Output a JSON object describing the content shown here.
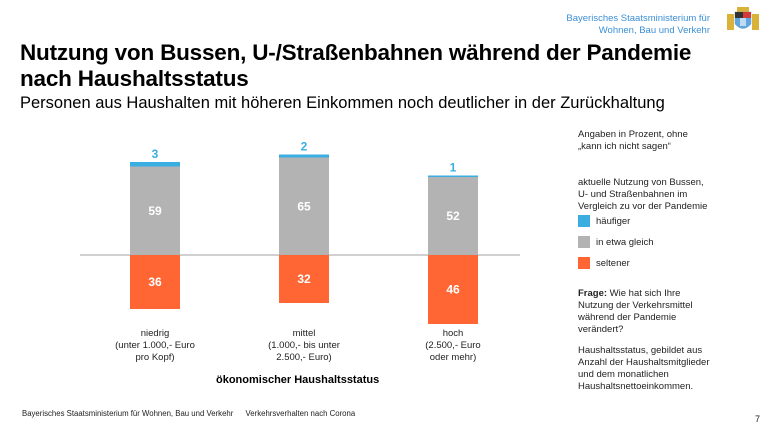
{
  "header": {
    "ministry_line1": "Bayerisches Staatsministerium für",
    "ministry_line2": "Wohnen, Bau und Verkehr",
    "logo": "bavarian-coat-of-arms-icon"
  },
  "title_line1": "Nutzung von Bussen, U-/Straßenbahnen während der Pandemie",
  "title_line2": "nach Haushaltsstatus",
  "subtitle": "Personen aus Haushalten mit höheren Einkommen noch deutlicher in der Zurückhaltung",
  "chart_data": {
    "type": "bar",
    "stacked": true,
    "baseline_between": [
      "in etwa gleich",
      "seltener"
    ],
    "categories": [
      "niedrig (unter 1.000,- Euro pro Kopf)",
      "mittel (1.000,- bis unter 2.500,- Euro)",
      "hoch (2.500,- Euro oder mehr)"
    ],
    "category_lines": [
      [
        "niedrig",
        "(unter 1.000,- Euro",
        "pro Kopf)"
      ],
      [
        "mittel",
        "(1.000,- bis unter",
        "2.500,- Euro)"
      ],
      [
        "hoch",
        "(2.500,- Euro",
        "oder mehr)"
      ]
    ],
    "series": [
      {
        "name": "häufiger",
        "color": "#3aaee0",
        "values": [
          3,
          2,
          1
        ]
      },
      {
        "name": "in etwa gleich",
        "color": "#b3b3b3",
        "values": [
          59,
          65,
          52
        ]
      },
      {
        "name": "seltener",
        "color": "#ff6633",
        "values": [
          36,
          32,
          46
        ]
      }
    ],
    "xlabel": "ökonomischer Haushaltsstatus",
    "ylabel": "",
    "unit": "Prozent",
    "grid": false,
    "legend_position": "right"
  },
  "side": {
    "note_line1": "Angaben in Prozent, ohne",
    "note_line2": "„kann ich nicht sagen“",
    "legend_title_1": "aktuelle Nutzung von Bussen,",
    "legend_title_2": "U- und Straßenbahnen im",
    "legend_title_3": "Vergleich zu vor der Pandemie",
    "question_label": "Frage:",
    "question_1": " Wie hat sich Ihre",
    "question_2": "Nutzung der Verkehrsmittel",
    "question_3": "während der Pandemie",
    "question_4": "verändert?",
    "def_1": "Haushaltsstatus, gebildet aus",
    "def_2": "Anzahl der Haushaltsmitglieder",
    "def_3": "und dem monatlichen",
    "def_4": "Haushaltsnettoeinkommen."
  },
  "footer": {
    "org": "Bayerisches Staatsministerium für Wohnen, Bau und Verkehr",
    "topic": "Verkehrsverhalten nach Corona",
    "page": "7"
  }
}
